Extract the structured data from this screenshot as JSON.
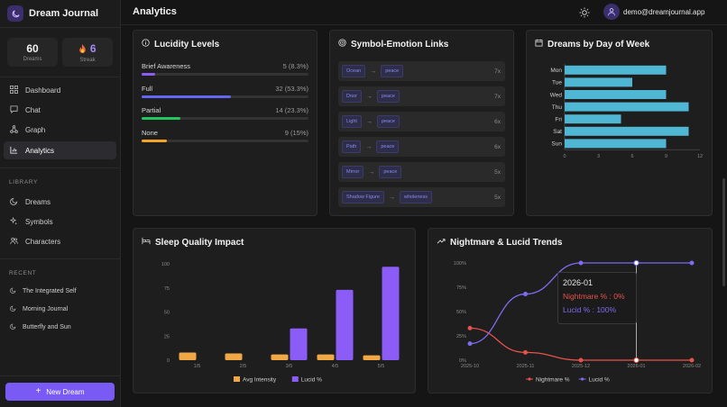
{
  "app": {
    "name": "Dream Journal"
  },
  "stats": {
    "dreams_value": "60",
    "dreams_label": "Dreams",
    "streak_value": "6",
    "streak_label": "Streak"
  },
  "nav": [
    {
      "label": "Dashboard",
      "icon": "dashboard-icon"
    },
    {
      "label": "Chat",
      "icon": "chat-icon"
    },
    {
      "label": "Graph",
      "icon": "graph-icon"
    },
    {
      "label": "Analytics",
      "icon": "analytics-icon",
      "active": true
    }
  ],
  "library": {
    "heading": "LIBRARY",
    "items": [
      {
        "label": "Dreams",
        "icon": "moon-icon"
      },
      {
        "label": "Symbols",
        "icon": "sparkles-icon"
      },
      {
        "label": "Characters",
        "icon": "users-icon"
      }
    ]
  },
  "recent": {
    "heading": "RECENT",
    "items": [
      {
        "label": "The Integrated Self"
      },
      {
        "label": "Morning Journal"
      },
      {
        "label": "Butterfly and Sun"
      }
    ]
  },
  "new_dream_label": "New Dream",
  "header": {
    "title": "Analytics",
    "email": "demo@dreamjournal.app"
  },
  "lucidity": {
    "title": "Lucidity Levels",
    "rows": [
      {
        "label": "Brief Awareness",
        "value": "5 (8.3%)",
        "fraction": 0.083,
        "color": "#8b5cf6"
      },
      {
        "label": "Full",
        "value": "32 (53.3%)",
        "fraction": 0.533,
        "color": "#6366f1"
      },
      {
        "label": "Partial",
        "value": "14 (23.3%)",
        "fraction": 0.233,
        "color": "#22c55e"
      },
      {
        "label": "None",
        "value": "9 (15%)",
        "fraction": 0.15,
        "color": "#f5a524"
      }
    ]
  },
  "links": {
    "title": "Symbol-Emotion Links",
    "rows": [
      {
        "symbol": "Ocean",
        "emotion": "peace",
        "count": "7x"
      },
      {
        "symbol": "Door",
        "emotion": "peace",
        "count": "7x"
      },
      {
        "symbol": "Light",
        "emotion": "peace",
        "count": "6x"
      },
      {
        "symbol": "Path",
        "emotion": "peace",
        "count": "6x"
      },
      {
        "symbol": "Mirror",
        "emotion": "peace",
        "count": "5x"
      },
      {
        "symbol": "Shadow Figure",
        "emotion": "wholeness",
        "count": "5x"
      }
    ]
  },
  "dow": {
    "title": "Dreams by Day of Week"
  },
  "sleep": {
    "title": "Sleep Quality Impact"
  },
  "trends": {
    "title": "Nightmare & Lucid Trends",
    "tooltip": {
      "label": "2026-01",
      "nightmare": "Nightmare % : 0%",
      "lucid": "Lucid % : 100%"
    }
  },
  "chart_data": [
    {
      "type": "bar",
      "orientation": "horizontal",
      "categories": [
        "Mon",
        "Tue",
        "Wed",
        "Thu",
        "Fri",
        "Sat",
        "Sun"
      ],
      "values": [
        9,
        6,
        9,
        11,
        5,
        11,
        9
      ],
      "xlim": [
        0,
        12
      ],
      "xticks": [
        "0",
        "3",
        "6",
        "9",
        "12"
      ],
      "color": "#4fb6d3"
    },
    {
      "type": "bar",
      "categories": [
        "1/5",
        "2/5",
        "3/5",
        "4/5",
        "5/5"
      ],
      "ylim": [
        0,
        100
      ],
      "yticks": [
        "0",
        "25",
        "50",
        "75",
        "100"
      ],
      "series": [
        {
          "name": "Avg Intensity",
          "values": [
            8,
            7,
            6,
            6,
            5
          ],
          "color": "#f0a846"
        },
        {
          "name": "Lucid %",
          "values": [
            0,
            0,
            33,
            73,
            97
          ],
          "color": "#8b5cf6"
        }
      ]
    },
    {
      "type": "line",
      "x": [
        "2025-10",
        "2025-11",
        "2025-12",
        "2026-01",
        "2026-02"
      ],
      "ylim": [
        0,
        100
      ],
      "yticks": [
        "0%",
        "25%",
        "50%",
        "75%",
        "100%"
      ],
      "series": [
        {
          "name": "Nightmare %",
          "values": [
            33,
            8,
            0,
            0,
            0
          ],
          "color": "#e5534b"
        },
        {
          "name": "Lucid %",
          "values": [
            17,
            68,
            100,
            100,
            100
          ],
          "color": "#7c6cf0"
        }
      ]
    }
  ]
}
